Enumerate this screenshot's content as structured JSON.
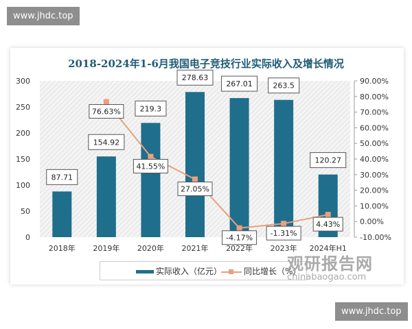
{
  "watermark_text": "www.jhdc.top",
  "brand": {
    "cn": "观研报告网",
    "en": "chinabaogao.com"
  },
  "chart_data": {
    "type": "bar+line",
    "title": "2018-2024年1-6月我国电子竞技行业实际收入及增长情况",
    "categories": [
      "2018年",
      "2019年",
      "2020年",
      "2021年",
      "2022年",
      "2023年",
      "2024年H1"
    ],
    "series": [
      {
        "name": "实际收入（亿元）",
        "type": "bar",
        "axis": "left",
        "color": "#1f6e8c",
        "values": [
          87.71,
          154.92,
          219.3,
          278.63,
          267.01,
          263.5,
          120.27
        ],
        "labels": [
          "87.71",
          "154.92",
          "219.3",
          "278.63",
          "267.01",
          "263.5",
          "120.27"
        ]
      },
      {
        "name": "同比增长（%）",
        "type": "line",
        "axis": "right",
        "color": "#e8a17e",
        "values": [
          null,
          76.63,
          41.55,
          27.05,
          -4.17,
          -1.31,
          4.43
        ],
        "labels": [
          "",
          "76.63%",
          "41.55%",
          "27.05%",
          "-4.17%",
          "-1.31%",
          "4.43%"
        ]
      }
    ],
    "y_left": {
      "range": [
        0,
        300
      ],
      "ticks": [
        "0",
        "50",
        "100",
        "150",
        "200",
        "250",
        "300"
      ]
    },
    "y_right": {
      "range": [
        -10,
        90
      ],
      "ticks": [
        "-10.00%",
        "0.00%",
        "10.00%",
        "20.00%",
        "30.00%",
        "40.00%",
        "50.00%",
        "60.00%",
        "70.00%",
        "80.00%",
        "90.00%"
      ]
    },
    "legend": "bottom",
    "grid": false
  }
}
